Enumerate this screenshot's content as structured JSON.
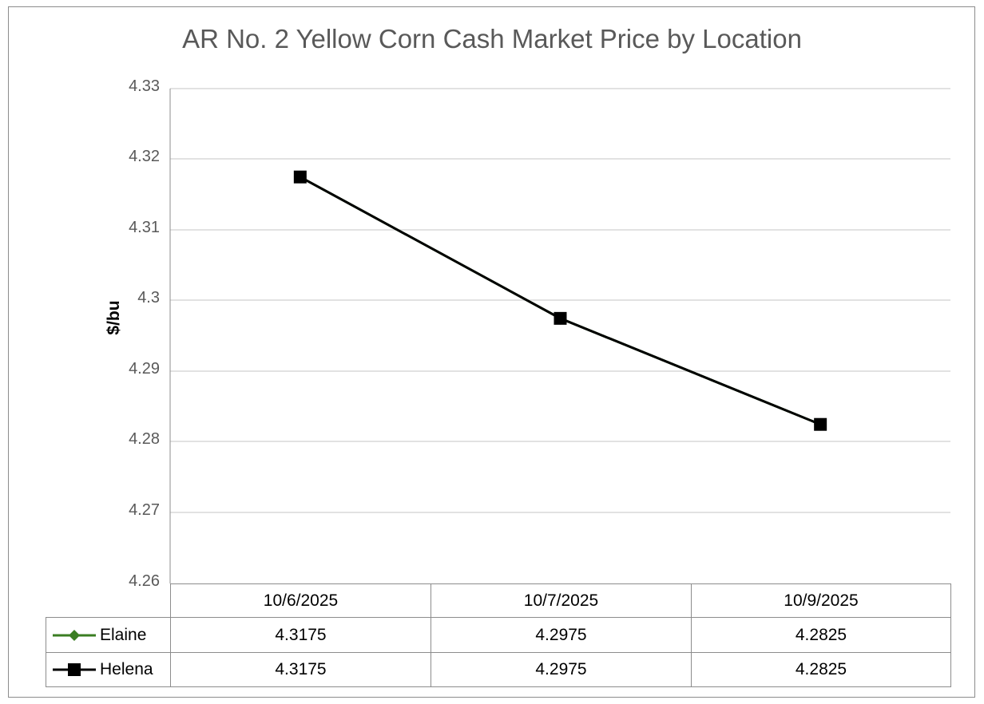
{
  "chart_data": {
    "type": "line",
    "title": "AR No. 2 Yellow Corn Cash Market Price by Location",
    "xlabel": "",
    "ylabel": "$/bu",
    "ylim": [
      4.26,
      4.33
    ],
    "yticks": [
      "4.33",
      "4.32",
      "4.31",
      "4.3",
      "4.29",
      "4.28",
      "4.27",
      "4.26"
    ],
    "categories": [
      "10/6/2025",
      "10/7/2025",
      "10/9/2025"
    ],
    "series": [
      {
        "name": "Elaine",
        "values": [
          4.3175,
          4.2975,
          4.2825
        ],
        "color": "#3a7d22",
        "marker": "diamond",
        "display": [
          "4.3175",
          "4.2975",
          "4.2825"
        ]
      },
      {
        "name": "Helena",
        "values": [
          4.3175,
          4.2975,
          4.2825
        ],
        "color": "#000000",
        "marker": "square",
        "display": [
          "4.3175",
          "4.2975",
          "4.2825"
        ]
      }
    ],
    "grid": true,
    "legend_position": "data-table",
    "data_table": true
  }
}
